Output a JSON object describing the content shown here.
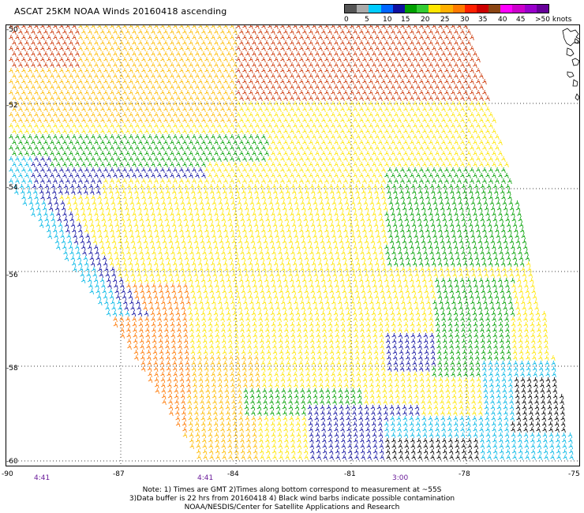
{
  "title": "ASCAT 25KM NOAA Winds 20160418 ascending",
  "colorbar": {
    "colors": [
      "#555555",
      "#aaaaaa",
      "#00ccff",
      "#0066ff",
      "#1010a0",
      "#00a000",
      "#33cc33",
      "#ffe600",
      "#ffb000",
      "#ff7a00",
      "#ff2000",
      "#cc0000",
      "#8b4513",
      "#ff00ff",
      "#cc00cc",
      "#9900cc",
      "#660099"
    ],
    "labels": [
      "0",
      "5",
      "10",
      "15",
      "20",
      "25",
      "30",
      "35",
      "40",
      "45",
      ">50 knots"
    ]
  },
  "lat_labels": [
    "-50",
    "-52",
    "-54",
    "-56",
    "-58",
    "-60"
  ],
  "lon_labels": [
    "-90",
    "-87",
    "-84",
    "-81",
    "-78",
    "-75"
  ],
  "time_labels": [
    "4:41",
    "4:41",
    "3:00"
  ],
  "note": {
    "line1": "Note: 1) Times are GMT 2)Times along bottom correspond to measurement at ~55S",
    "line2": "3)Data buffer is 22 hrs from 20160418 4) Black wind barbs indicate possible contamination",
    "line3": "NOAA/NESDIS/Center for Satellite Applications and Research"
  },
  "wind_colors": {
    "orange_red": "#cc3300",
    "orange": "#ff7700",
    "gold": "#ffbb00",
    "yellow": "#ffe600",
    "green": "#00a000",
    "blue": "#1010a0",
    "cyan": "#00b7e6",
    "black": "#000000"
  }
}
